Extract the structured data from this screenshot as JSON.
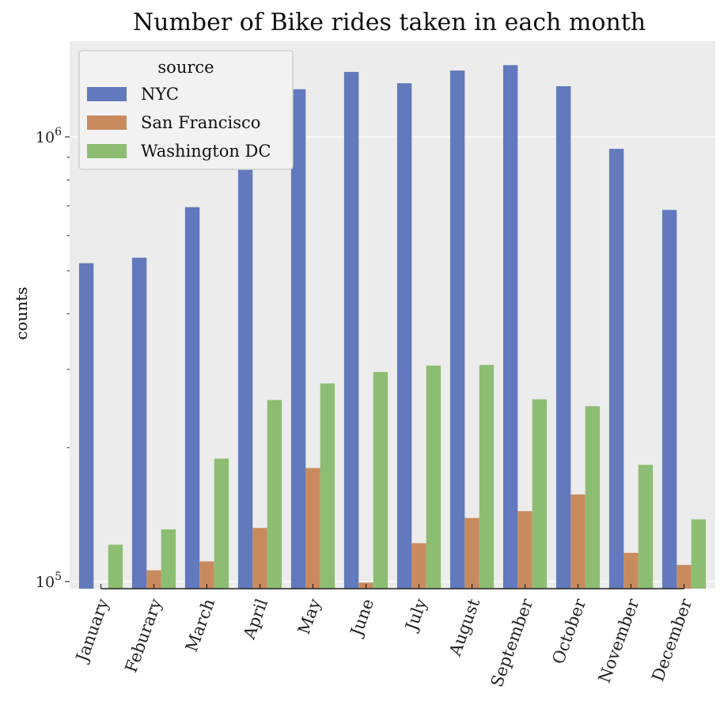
{
  "chart_data": {
    "type": "bar",
    "title": "Number of Bike rides taken in each month",
    "xlabel": "",
    "ylabel": "counts",
    "yscale": "log",
    "ylim": [
      95000,
      1650000
    ],
    "yticks": [
      {
        "value": 100000,
        "base": "10",
        "exp": "5"
      },
      {
        "value": 1000000,
        "base": "10",
        "exp": "6"
      }
    ],
    "grid": true,
    "legend": {
      "title": "source",
      "placement": "top-left"
    },
    "categories": [
      "January",
      "Feburary",
      "March",
      "April",
      "May",
      "June",
      "July",
      "August",
      "September",
      "October",
      "November",
      "December"
    ],
    "series": [
      {
        "name": "NYC",
        "color": "#6279bd",
        "values": [
          520000,
          535000,
          695000,
          1000000,
          1280000,
          1400000,
          1320000,
          1410000,
          1450000,
          1300000,
          940000,
          685000
        ]
      },
      {
        "name": "San Francisco",
        "color": "#c98a5e",
        "values": [
          null,
          106000,
          111000,
          132000,
          180000,
          99500,
          122000,
          139000,
          144000,
          157000,
          116000,
          109000
        ]
      },
      {
        "name": "Washington DC",
        "color": "#8dbd72",
        "values": [
          121000,
          131000,
          189000,
          256000,
          279000,
          296000,
          306000,
          307000,
          257000,
          248000,
          183000,
          138000
        ]
      }
    ]
  }
}
